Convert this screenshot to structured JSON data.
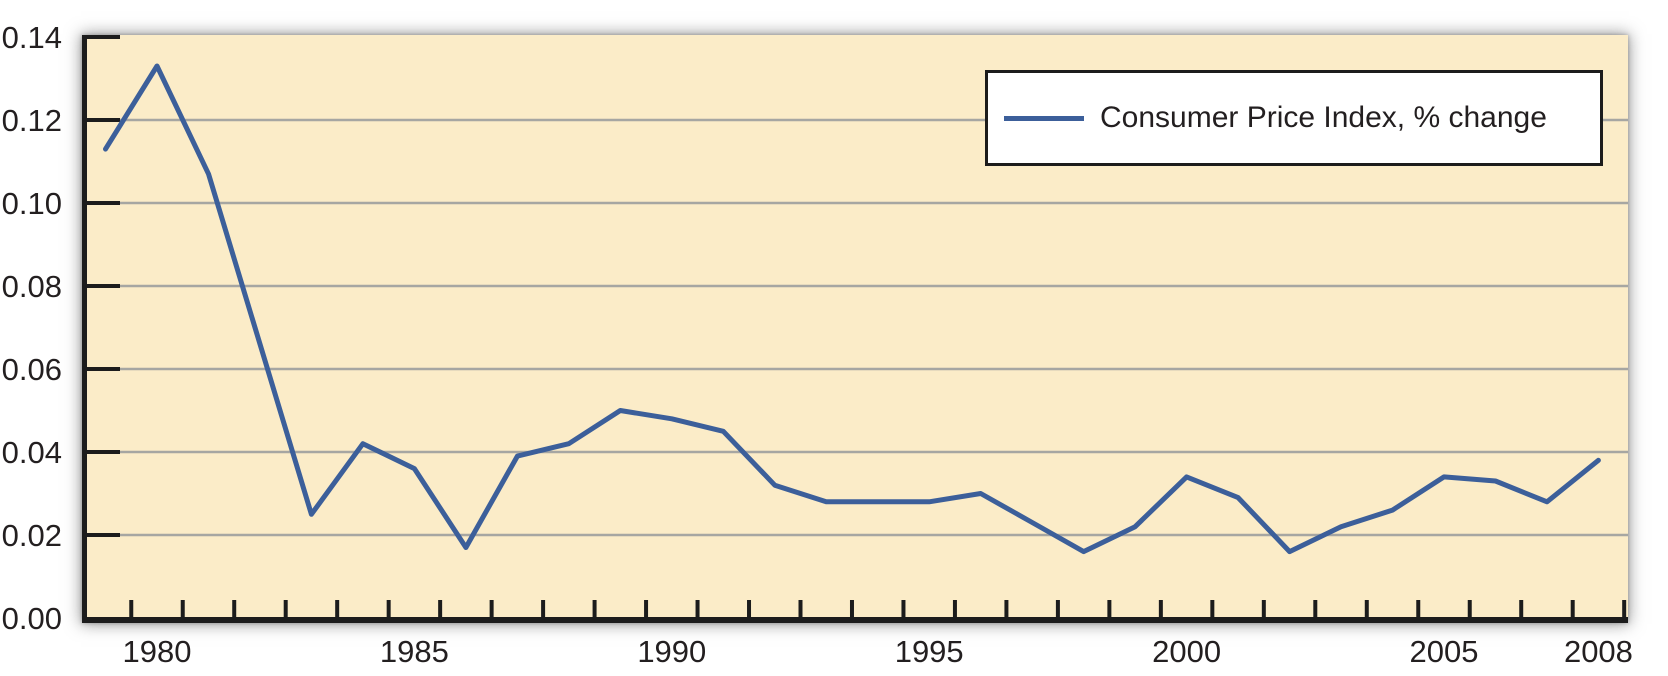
{
  "page": {
    "background_color": "#FFFFFF"
  },
  "chart_data": {
    "type": "line",
    "title": "",
    "xlabel": "",
    "ylabel": "",
    "legend": {
      "label": "Consumer Price Index, % change",
      "position": "top-right"
    },
    "x": [
      1979,
      1980,
      1981,
      1982,
      1983,
      1984,
      1985,
      1986,
      1987,
      1988,
      1989,
      1990,
      1991,
      1992,
      1993,
      1994,
      1995,
      1996,
      1997,
      1998,
      1999,
      2000,
      2001,
      2002,
      2003,
      2004,
      2005,
      2006,
      2007,
      2008
    ],
    "series": [
      {
        "name": "Consumer Price Index, % change",
        "values": [
          0.113,
          0.133,
          0.107,
          0.066,
          0.025,
          0.042,
          0.036,
          0.017,
          0.039,
          0.042,
          0.05,
          0.048,
          0.045,
          0.032,
          0.028,
          0.028,
          0.028,
          0.03,
          0.023,
          0.016,
          0.022,
          0.034,
          0.029,
          0.016,
          0.022,
          0.026,
          0.034,
          0.033,
          0.028,
          0.038
        ]
      }
    ],
    "ylim": [
      0,
      0.14
    ],
    "y_ticks": [
      0,
      0.02,
      0.04,
      0.06,
      0.08,
      0.1,
      0.12,
      0.14
    ],
    "y_tick_labels": [
      "0.00",
      "0.02",
      "0.04",
      "0.06",
      "0.08",
      "0.10",
      "0.12",
      "0.14"
    ],
    "x_tick_labels": [
      "1980",
      "1985",
      "1990",
      "1995",
      "2000",
      "2005",
      "2008"
    ],
    "x_labeled_years": [
      1980,
      1985,
      1990,
      1995,
      2000,
      2005,
      2008
    ],
    "minor_x_ticks": "one tick per year at mid-year boundaries, 1979.5 to 2008.5",
    "grid": {
      "horizontal": true,
      "vertical": false
    },
    "colors": {
      "line": "#3C5F9A",
      "plot_background": "#FBECC8",
      "gridline": "#A6A6A2",
      "axis": "#1C1C1C",
      "text": "#231F20",
      "legend_background": "#FFFFFF",
      "legend_border": "#1C1C1C",
      "page_background": "#FFFFFF"
    }
  }
}
